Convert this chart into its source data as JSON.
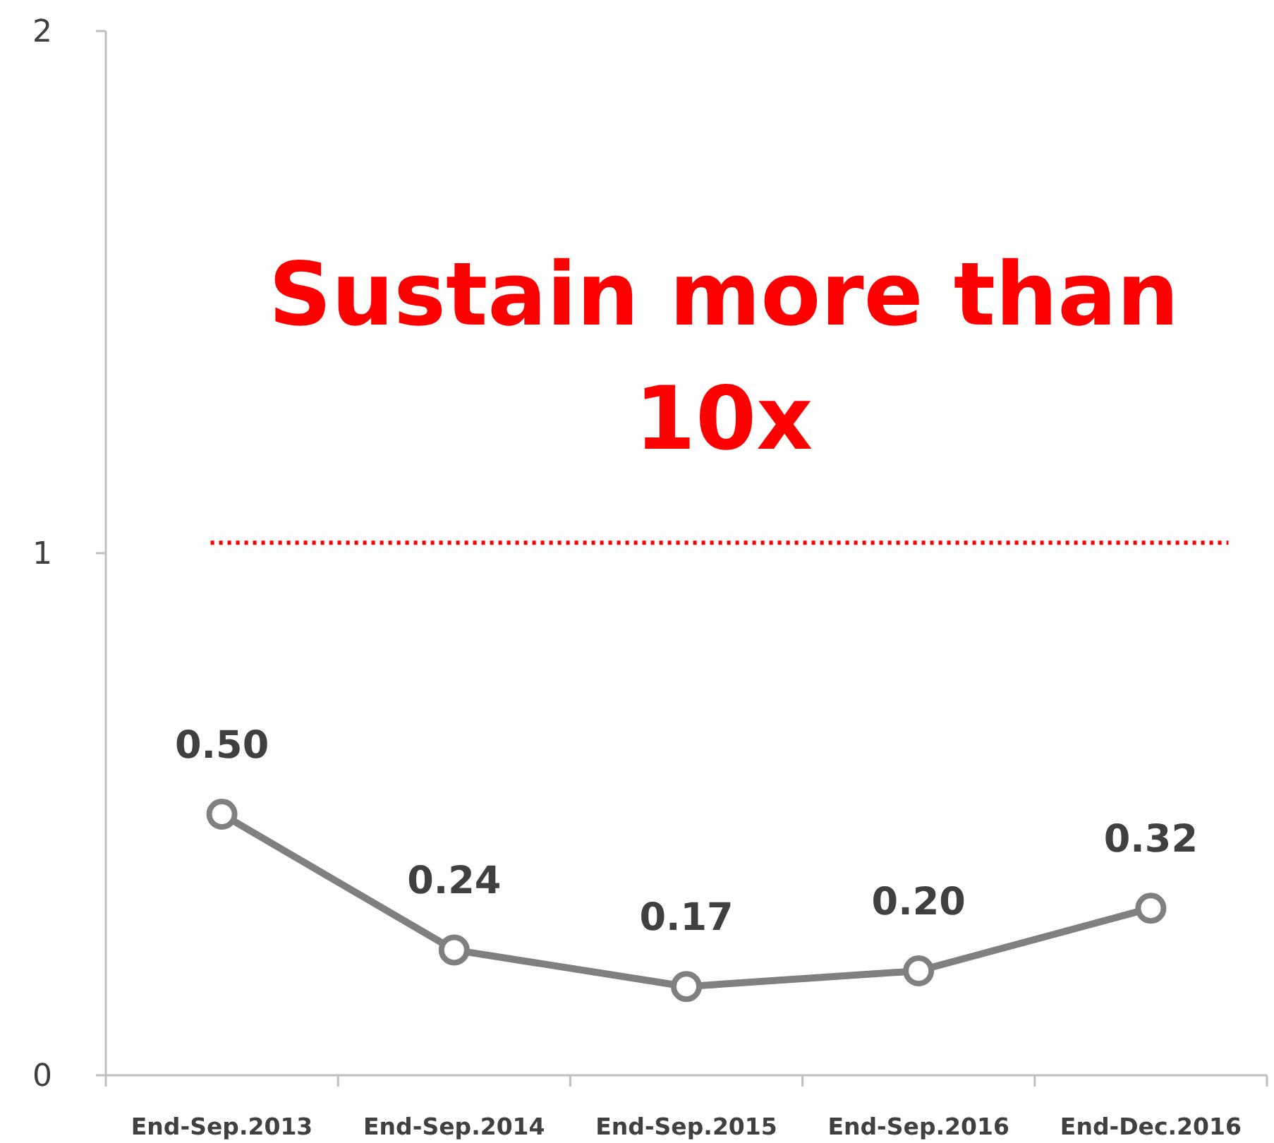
{
  "chart_data": {
    "type": "line",
    "categories": [
      "End-Sep.2013",
      "End-Sep.2014",
      "End-Sep.2015",
      "End-Sep.2016",
      "End-Dec.2016"
    ],
    "series": [
      {
        "color": "#808080",
        "values": [
          0.5,
          0.24,
          0.17,
          0.2,
          0.32
        ],
        "value_labels": [
          "0.50",
          "0.24",
          "0.17",
          "0.20",
          "0.32"
        ]
      }
    ],
    "ylim": [
      0,
      2
    ],
    "yticks": [
      0,
      1,
      2
    ],
    "marker": "circle",
    "line_style": "solid",
    "grid": false,
    "ref_lines": [
      {
        "axis": "y",
        "value": 1.02,
        "color": "#ff0000",
        "line_style": "dotted"
      }
    ],
    "annotations": [
      "Sustain more than 10x"
    ]
  }
}
